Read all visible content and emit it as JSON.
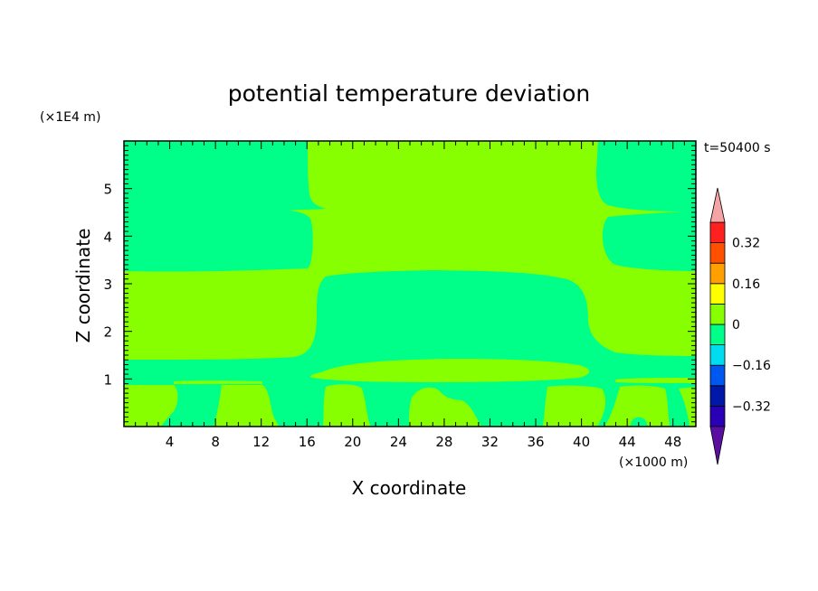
{
  "chart_data": {
    "type": "heatmap",
    "title": "potential temperature deviation",
    "xlabel": "X coordinate",
    "ylabel": "Z coordinate",
    "x_unit": "(×1000 m)",
    "y_unit": "(×1E4 m)",
    "time_label": "t=50400 s",
    "xlim": [
      0,
      50
    ],
    "ylim": [
      0,
      6
    ],
    "x_ticks": [
      4,
      8,
      12,
      16,
      20,
      24,
      28,
      32,
      36,
      40,
      44,
      48
    ],
    "x_tick_labels": [
      "4",
      "8",
      "12",
      "16",
      "20",
      "24",
      "28",
      "32",
      "36",
      "40",
      "44",
      "48"
    ],
    "y_ticks": [
      1,
      2,
      3,
      4,
      5
    ],
    "y_tick_labels": [
      "1",
      "2",
      "3",
      "4",
      "5"
    ],
    "colorbar": {
      "levels": [
        -0.4,
        -0.32,
        -0.24,
        -0.16,
        -0.08,
        0,
        0.08,
        0.16,
        0.24,
        0.32,
        0.4
      ],
      "colors": [
        "#5a0fa0",
        "#2a00b4",
        "#0018a8",
        "#0058f0",
        "#00dcf0",
        "#00ff88",
        "#88ff00",
        "#ffff00",
        "#ffa000",
        "#ff5000",
        "#ff2020",
        "#f4a4a4"
      ],
      "tick_values": [
        0.32,
        0.16,
        0,
        -0.16,
        -0.32
      ],
      "tick_labels": [
        "0.32",
        "0.16",
        "0",
        "−0.16",
        "−0.32"
      ]
    },
    "regions_value_colors": {
      "negative_small": "#00ff88",
      "positive_small": "#88ff00"
    }
  }
}
